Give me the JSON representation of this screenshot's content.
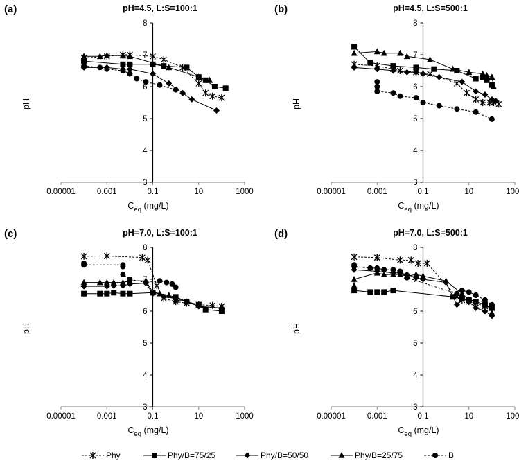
{
  "legend": [
    {
      "name": "Phy",
      "marker": "star",
      "dash": "3,2"
    },
    {
      "name": "Phy/B=75/25",
      "marker": "square",
      "dash": ""
    },
    {
      "name": "Phy/B=50/50",
      "marker": "diamond",
      "dash": ""
    },
    {
      "name": "Phy/B=25/75",
      "marker": "triangle",
      "dash": ""
    },
    {
      "name": "B",
      "marker": "circle",
      "dash": "3,2"
    }
  ],
  "colors": {
    "series": "#000000",
    "axis": "#808080",
    "frame": "#000000"
  },
  "chart_data": [
    {
      "type": "line",
      "panel_label": "(a)",
      "title": "pH=4.5, L:S=100:1",
      "xlabel": "C",
      "xlabel_sub": "eq",
      "xlabel_unit": " (mg/L)",
      "ylabel": "pH",
      "xscale": "log",
      "xlim": [
        1e-05,
        1000
      ],
      "ylim": [
        3,
        8
      ],
      "x_ticks": [
        "0.00001",
        "0.001",
        "0.1",
        "10",
        "1000"
      ],
      "y_ticks": [
        "3",
        "4",
        "5",
        "6",
        "7",
        "8"
      ],
      "series": [
        {
          "name": "Phy",
          "x": [
            0.0001,
            0.001,
            0.005,
            0.01,
            0.1,
            0.3,
            2,
            10,
            20,
            40,
            100
          ],
          "y": [
            6.9,
            6.95,
            7.0,
            7.0,
            6.95,
            6.85,
            6.6,
            6.1,
            5.8,
            5.7,
            5.65
          ]
        },
        {
          "name": "Phy/B=75/25",
          "x": [
            0.0001,
            0.005,
            0.01,
            0.1,
            0.3,
            3,
            10,
            20,
            50,
            150
          ],
          "y": [
            6.8,
            6.7,
            6.7,
            6.7,
            6.65,
            6.6,
            6.3,
            6.2,
            6.0,
            5.95
          ]
        },
        {
          "name": "Phy/B=50/50",
          "x": [
            0.0001,
            0.001,
            0.005,
            0.01,
            0.1,
            0.5,
            2,
            5,
            60
          ],
          "y": [
            6.6,
            6.6,
            6.55,
            6.55,
            6.4,
            6.1,
            5.8,
            5.6,
            5.25
          ]
        },
        {
          "name": "Phy/B=25/75",
          "x": [
            0.0001,
            0.0005,
            0.001,
            0.005,
            0.01,
            0.5,
            10,
            30
          ],
          "y": [
            6.95,
            6.95,
            6.98,
            6.97,
            6.95,
            6.6,
            6.3,
            6.2
          ]
        },
        {
          "name": "B",
          "x": [
            0.0001,
            0.0005,
            0.001,
            0.005,
            0.01,
            0.02,
            0.05,
            0.2,
            1
          ],
          "y": [
            6.65,
            6.6,
            6.55,
            6.5,
            6.4,
            6.25,
            6.15,
            6.05,
            5.9
          ]
        }
      ]
    },
    {
      "type": "line",
      "panel_label": "(b)",
      "title": "pH=4.5, L:S=500:1",
      "xlabel": "C",
      "xlabel_sub": "eq",
      "xlabel_unit": " (mg/L)",
      "ylabel": "pH",
      "xscale": "log",
      "xlim": [
        1e-05,
        1000
      ],
      "ylim": [
        3,
        8
      ],
      "x_ticks": [
        "0.00001",
        "0.001",
        "0.1",
        "10",
        "1000"
      ],
      "y_ticks": [
        "3",
        "4",
        "5",
        "6",
        "7",
        "8"
      ],
      "series": [
        {
          "name": "Phy",
          "x": [
            0.0001,
            0.001,
            0.005,
            0.01,
            0.05,
            0.2,
            3,
            8,
            20,
            40,
            80,
            120,
            200
          ],
          "y": [
            6.7,
            6.65,
            6.55,
            6.5,
            6.45,
            6.4,
            6.1,
            5.8,
            5.6,
            5.5,
            5.5,
            5.5,
            5.45
          ]
        },
        {
          "name": "Phy/B=75/25",
          "x": [
            0.0001,
            0.0005,
            0.005,
            0.05,
            0.3,
            3,
            20,
            40,
            60,
            100
          ],
          "y": [
            7.25,
            6.75,
            6.65,
            6.6,
            6.55,
            6.5,
            6.25,
            6.3,
            6.2,
            6.05
          ]
        },
        {
          "name": "Phy/B=50/50",
          "x": [
            0.0001,
            0.001,
            0.005,
            0.02,
            0.05,
            0.1,
            0.5,
            5,
            20,
            50,
            100,
            150
          ],
          "y": [
            6.6,
            6.55,
            6.5,
            6.45,
            6.45,
            6.4,
            6.3,
            6.15,
            5.85,
            5.75,
            5.6,
            5.55
          ]
        },
        {
          "name": "Phy/B=25/75",
          "x": [
            0.0001,
            0.001,
            0.002,
            0.01,
            0.02,
            0.2,
            2,
            10,
            40,
            60,
            100,
            120
          ],
          "y": [
            7.05,
            7.1,
            7.05,
            7.05,
            6.95,
            6.85,
            6.55,
            6.45,
            6.4,
            6.35,
            6.3,
            6.0
          ]
        },
        {
          "name": "B",
          "x": [
            0.001,
            0.001,
            0.001,
            0.005,
            0.01,
            0.05,
            0.1,
            0.5,
            3,
            20,
            100
          ],
          "y": [
            6.15,
            6.0,
            5.85,
            5.8,
            5.7,
            5.65,
            5.5,
            5.4,
            5.3,
            5.2,
            4.98
          ]
        }
      ]
    },
    {
      "type": "line",
      "panel_label": "(c)",
      "title": "pH=7.0, L:S=100:1",
      "xlabel": "C",
      "xlabel_sub": "eq",
      "xlabel_unit": " (mg/L)",
      "ylabel": "pH",
      "xscale": "log",
      "xlim": [
        1e-05,
        1000
      ],
      "ylim": [
        3,
        8
      ],
      "x_ticks": [
        "0.00001",
        "0.001",
        "0.1",
        "10",
        "1000"
      ],
      "y_ticks": [
        "3",
        "4",
        "5",
        "6",
        "7",
        "8"
      ],
      "series": [
        {
          "name": "Phy",
          "x": [
            0.0001,
            0.001,
            0.001,
            0.035,
            0.06,
            0.15,
            0.3,
            1,
            3,
            10,
            40,
            100,
            100
          ],
          "y": [
            7.72,
            7.73,
            7.73,
            7.68,
            7.6,
            6.8,
            6.4,
            6.3,
            6.25,
            6.2,
            6.18,
            6.15,
            6.15
          ]
        },
        {
          "name": "Phy/B=75/25",
          "x": [
            0.0001,
            0.0005,
            0.001,
            0.002,
            0.005,
            0.01,
            0.1,
            1,
            3,
            10,
            20,
            100
          ],
          "y": [
            6.55,
            6.55,
            6.55,
            6.58,
            6.55,
            6.55,
            6.58,
            6.45,
            6.3,
            6.2,
            6.05,
            6.0
          ]
        },
        {
          "name": "Phy/B=50/50",
          "x": [
            0.0001,
            0.001,
            0.002,
            0.005,
            0.01,
            0.05,
            0.1,
            0.3,
            1,
            3,
            10,
            100
          ],
          "y": [
            6.78,
            6.78,
            6.8,
            6.8,
            6.85,
            6.88,
            6.55,
            6.45,
            6.4,
            6.3,
            6.15,
            6.1
          ]
        },
        {
          "name": "Phy/B=25/75",
          "x": [
            0.0001,
            0.0005,
            0.001,
            0.002,
            0.005,
            0.01,
            0.05,
            0.1,
            0.2,
            0.5,
            1,
            3
          ],
          "y": [
            6.9,
            6.9,
            6.9,
            6.9,
            6.9,
            6.95,
            6.95,
            6.6,
            6.55,
            6.5,
            6.35,
            6.3
          ]
        },
        {
          "name": "B",
          "x": [
            0.0001,
            0.0001,
            0.005,
            0.005,
            0.005,
            0.01,
            0.05,
            0.2,
            0.4,
            0.7,
            1
          ],
          "y": [
            7.5,
            7.45,
            7.45,
            7.4,
            7.15,
            7.0,
            6.9,
            6.95,
            6.9,
            6.85,
            6.75
          ]
        }
      ]
    },
    {
      "type": "line",
      "panel_label": "(d)",
      "title": "pH=7.0, L:S=500:1",
      "xlabel": "C",
      "xlabel_sub": "eq",
      "xlabel_unit": " (mg/L)",
      "ylabel": "pH",
      "xscale": "log",
      "xlim": [
        1e-05,
        1000
      ],
      "ylim": [
        3,
        8
      ],
      "x_ticks": [
        "0.00001",
        "0.001",
        "0.1",
        "10",
        "1000"
      ],
      "y_ticks": [
        "3",
        "4",
        "5",
        "6",
        "7",
        "8"
      ],
      "series": [
        {
          "name": "Phy",
          "x": [
            0.0001,
            0.001,
            0.001,
            0.01,
            0.03,
            0.06,
            0.15,
            3,
            5,
            10,
            20,
            50,
            100
          ],
          "y": [
            7.7,
            7.68,
            7.68,
            7.6,
            7.6,
            7.5,
            7.5,
            6.45,
            6.35,
            6.3,
            6.25,
            6.15,
            6.1
          ]
        },
        {
          "name": "Phy/B=75/25",
          "x": [
            0.0001,
            0.0005,
            0.001,
            0.002,
            0.005,
            2,
            5,
            10,
            20,
            50,
            100
          ],
          "y": [
            6.65,
            6.6,
            6.6,
            6.6,
            6.65,
            6.45,
            6.4,
            6.35,
            6.3,
            6.2,
            6.1
          ]
        },
        {
          "name": "Phy/B=50/50",
          "x": [
            0.0001,
            0.001,
            0.005,
            0.01,
            0.02,
            0.05,
            0.1,
            1,
            3,
            5,
            10,
            20,
            50,
            100
          ],
          "y": [
            7.3,
            7.25,
            7.2,
            7.2,
            7.15,
            7.05,
            7.0,
            6.9,
            6.2,
            6.4,
            6.3,
            6.1,
            6.0,
            5.85
          ]
        },
        {
          "name": "Phy/B=25/75",
          "x": [
            0.0001,
            0.0001,
            0.001,
            0.002,
            0.005,
            0.01,
            0.02,
            0.05,
            0.1,
            1,
            5,
            10,
            50,
            100
          ],
          "y": [
            6.8,
            7.0,
            7.2,
            7.15,
            7.15,
            7.15,
            7.1,
            7.15,
            7.1,
            6.95,
            6.55,
            6.35,
            6.3,
            5.95
          ]
        },
        {
          "name": "B",
          "x": [
            0.0001,
            0.0001,
            0.0005,
            0.001,
            0.002,
            0.005,
            0.01,
            0.02,
            3,
            5,
            10,
            20,
            50,
            100
          ],
          "y": [
            7.45,
            7.4,
            7.35,
            7.35,
            7.3,
            7.3,
            7.25,
            7.05,
            6.55,
            6.65,
            6.6,
            6.5,
            6.35,
            6.2
          ]
        }
      ]
    }
  ]
}
